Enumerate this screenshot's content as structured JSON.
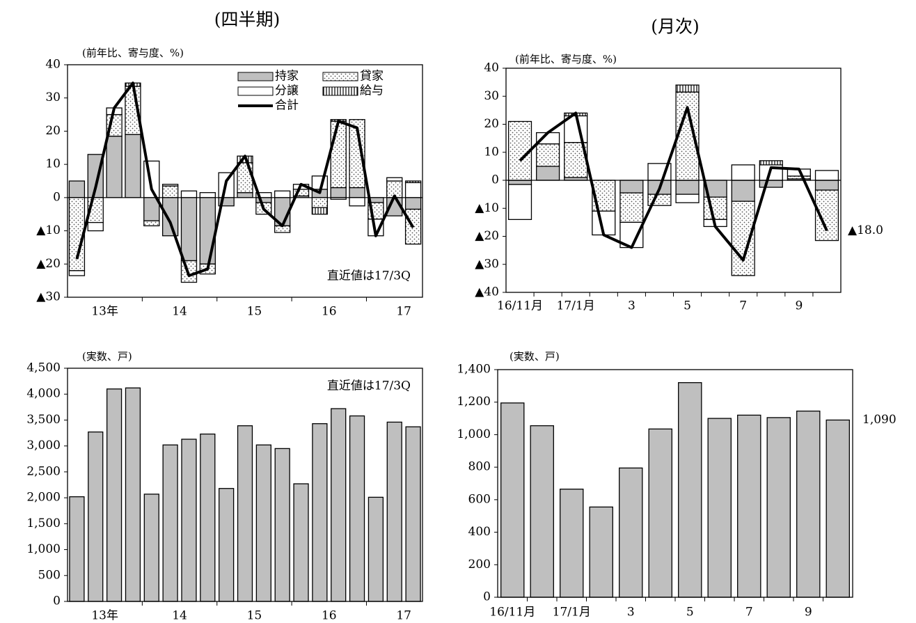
{
  "chart_data": [
    {
      "type": "bar",
      "stacked": true,
      "title": "(四半期)",
      "ylabel": "(前年比、寄与度、%)",
      "categories": [
        null,
        "13年",
        null,
        null,
        null,
        "14",
        null,
        null,
        null,
        "15",
        null,
        null,
        null,
        "16",
        null,
        null,
        null,
        "17",
        null
      ],
      "series": [
        {
          "name": "持家",
          "color": "#bfbfbf",
          "pattern": "none",
          "values": [
            5,
            13,
            18.5,
            19,
            -7,
            -11.5,
            -19,
            -20,
            -2.5,
            1.5,
            -1.5,
            -8.5,
            0.5,
            2.5,
            3,
            3,
            -1.5,
            -5.5,
            -3.5
          ]
        },
        {
          "name": "貸家",
          "color": "#ffffff",
          "pattern": "dots",
          "values": [
            -22,
            -7.5,
            6.5,
            14.5,
            -1.5,
            3.5,
            -6.5,
            -3,
            0,
            9,
            -3.5,
            -2,
            2,
            -3,
            20,
            20.5,
            -5,
            5,
            -10.5
          ]
        },
        {
          "name": "分譲",
          "color": "#ffffff",
          "pattern": "none",
          "values": [
            -1.5,
            -2.5,
            2,
            0,
            11,
            0.5,
            2,
            1.5,
            7.5,
            0,
            1.5,
            2,
            1.5,
            4,
            -0.5,
            -2.5,
            -5,
            1,
            4.5
          ]
        },
        {
          "name": "給与",
          "color": "#ffffff",
          "pattern": "vlines",
          "values": [
            0,
            0,
            0,
            1,
            0,
            0,
            0,
            0,
            0,
            2,
            0,
            0,
            0,
            -2,
            0.5,
            0,
            0,
            0,
            0.5
          ]
        },
        {
          "name": "合計",
          "type": "line",
          "color": "#000000",
          "values": [
            -18.5,
            3,
            27,
            34.5,
            2.5,
            -7.5,
            -23.5,
            -21.5,
            5,
            12.5,
            -3.5,
            -8.5,
            4,
            1.5,
            23,
            21,
            -11.5,
            0.5,
            -9
          ]
        }
      ],
      "ylim": [
        -30,
        40
      ],
      "yticks": [
        40,
        30,
        20,
        10,
        0,
        {
          "value": -10,
          "label": "▲10"
        },
        {
          "value": -20,
          "label": "▲20"
        },
        {
          "value": -30,
          "label": "▲30"
        }
      ],
      "legend": "upper right",
      "annotation": "直近値は17/3Q"
    },
    {
      "type": "bar",
      "stacked": true,
      "title": "(月次)",
      "ylabel": "(前年比、寄与度、%)",
      "categories": [
        "16/11月",
        null,
        "17/1月",
        null,
        "3",
        null,
        "5",
        null,
        "7",
        null,
        "9",
        null
      ],
      "series": [
        {
          "name": "持家",
          "color": "#bfbfbf",
          "pattern": "none",
          "values": [
            -1.5,
            5,
            1,
            0,
            -4.5,
            -5,
            -5,
            -6,
            -7.5,
            -2.5,
            0.5,
            -3.5
          ]
        },
        {
          "name": "貸家",
          "color": "#ffffff",
          "pattern": "dots",
          "values": [
            21,
            8,
            12.5,
            -11,
            -10.5,
            -4,
            31.5,
            -8,
            -26.5,
            0,
            1,
            -18
          ]
        },
        {
          "name": "分譲",
          "color": "#ffffff",
          "pattern": "none",
          "values": [
            -12.5,
            4,
            9.5,
            -8.5,
            -9,
            6,
            -3,
            -2.5,
            5.5,
            5.5,
            2.5,
            3.5
          ]
        },
        {
          "name": "給与",
          "color": "#ffffff",
          "pattern": "vlines",
          "values": [
            0,
            0,
            1,
            0,
            0,
            0,
            2.5,
            0,
            0,
            1.5,
            0,
            0
          ]
        },
        {
          "name": "合計",
          "type": "line",
          "color": "#000000",
          "values": [
            7,
            17,
            24,
            -19.5,
            -24,
            -3,
            26,
            -16.5,
            -28.5,
            4.5,
            4,
            -18
          ],
          "value_labels": [
            null,
            null,
            null,
            null,
            null,
            null,
            null,
            null,
            null,
            null,
            null,
            "▲18.0"
          ]
        }
      ],
      "ylim": [
        -40,
        40
      ],
      "yticks": [
        40,
        30,
        20,
        10,
        0,
        {
          "value": -10,
          "label": "▲10"
        },
        {
          "value": -20,
          "label": "▲20"
        },
        {
          "value": -30,
          "label": "▲30"
        },
        {
          "value": -40,
          "label": "▲40"
        }
      ]
    },
    {
      "type": "bar",
      "ylabel": "(実数、戸)",
      "categories": [
        null,
        "13年",
        null,
        null,
        null,
        "14",
        null,
        null,
        null,
        "15",
        null,
        null,
        null,
        "16",
        null,
        null,
        null,
        "17",
        null
      ],
      "values": [
        2020,
        3270,
        4100,
        4120,
        2070,
        3020,
        3130,
        3230,
        2180,
        3390,
        3020,
        2950,
        2270,
        3430,
        3720,
        3580,
        2010,
        3460,
        3370
      ],
      "color": "#bfbfbf",
      "ylim": [
        0,
        4500
      ],
      "yticks": [
        0,
        500,
        {
          "value": 1000,
          "label": "1,000"
        },
        {
          "value": 1500,
          "label": "1,500"
        },
        {
          "value": 2000,
          "label": "2,000"
        },
        {
          "value": 2500,
          "label": "2,500"
        },
        {
          "value": 3000,
          "label": "3,000"
        },
        {
          "value": 3500,
          "label": "3,500"
        },
        {
          "value": 4000,
          "label": "4,000"
        },
        {
          "value": 4500,
          "label": "4,500"
        }
      ],
      "annotation": "直近値は17/3Q"
    },
    {
      "type": "bar",
      "ylabel": "(実数、戸)",
      "categories": [
        "16/11月",
        null,
        "17/1月",
        null,
        "3",
        null,
        "5",
        null,
        "7",
        null,
        "9",
        null
      ],
      "values": [
        1195,
        1055,
        665,
        555,
        795,
        1035,
        1320,
        1100,
        1120,
        1105,
        1145,
        1090
      ],
      "value_labels": [
        null,
        null,
        null,
        null,
        null,
        null,
        null,
        null,
        null,
        null,
        null,
        "1,090"
      ],
      "color": "#bfbfbf",
      "ylim": [
        0,
        1400
      ],
      "yticks": [
        0,
        200,
        400,
        600,
        800,
        {
          "value": 1000,
          "label": "1,000"
        },
        {
          "value": 1200,
          "label": "1,200"
        },
        {
          "value": 1400,
          "label": "1,400"
        }
      ]
    }
  ]
}
